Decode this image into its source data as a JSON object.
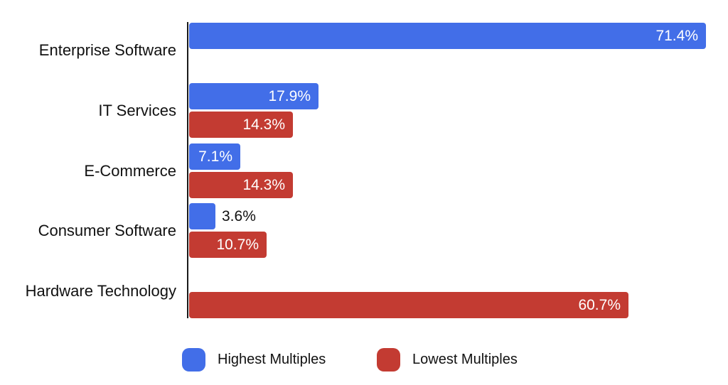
{
  "chart_data": {
    "type": "bar",
    "orientation": "horizontal",
    "title": "",
    "xlabel": "",
    "ylabel": "",
    "value_format": "percent",
    "xlim": [
      0,
      72
    ],
    "grid": false,
    "legend_position": "bottom",
    "axis_color": "#1a1a1a",
    "categories": [
      "Enterprise Software",
      "IT Services",
      "E-Commerce",
      "Consumer Software",
      "Hardware Technology"
    ],
    "series": [
      {
        "name": "Highest Multiples",
        "color": "#426EE8",
        "values": [
          71.4,
          17.9,
          7.1,
          3.6,
          null
        ],
        "labels": [
          "71.4%",
          "17.9%",
          "7.1%",
          "3.6%",
          null
        ]
      },
      {
        "name": "Lowest Multiples",
        "color": "#C33B32",
        "values": [
          null,
          14.3,
          14.3,
          10.7,
          60.7
        ],
        "labels": [
          null,
          "14.3%",
          "14.3%",
          "10.7%",
          "60.7%"
        ]
      }
    ]
  }
}
